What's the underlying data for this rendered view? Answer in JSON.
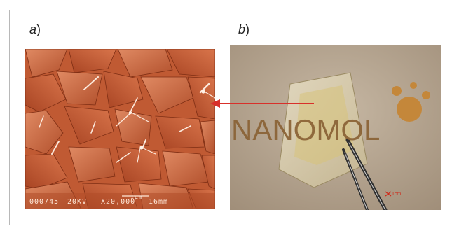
{
  "figure": {
    "panel_a_label": "a",
    "panel_b_label": "b",
    "paren": ")"
  },
  "sem_image": {
    "description_icon": "sem-micrograph",
    "overlay": {
      "specimen": "000745",
      "voltage": "20KV",
      "magnification": "X20,000",
      "working_distance": "16mm",
      "scale": "1µm"
    },
    "tint_color": "#c9623a"
  },
  "photo_image": {
    "logo_text": "NANOMOL",
    "scale_text": "1cm",
    "arrow_color": "#d8302a",
    "logo_color": "#c4873a"
  }
}
